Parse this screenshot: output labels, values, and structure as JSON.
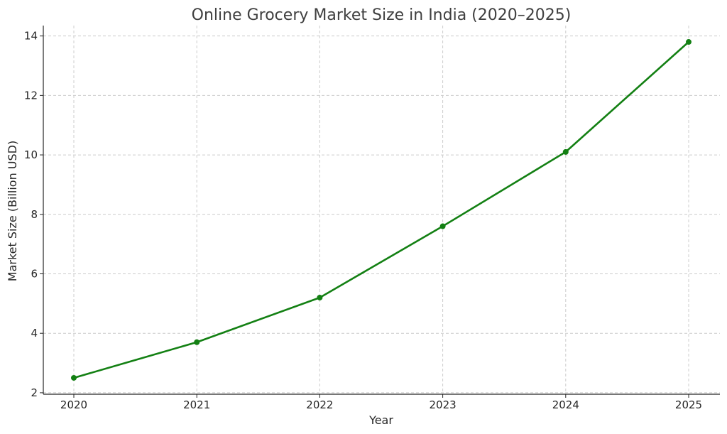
{
  "chart_data": {
    "type": "line",
    "title": "Online Grocery Market Size in India (2020–2025)",
    "xlabel": "Year",
    "ylabel": "Market Size (Billion USD)",
    "x": [
      "2020",
      "2021",
      "2022",
      "2023",
      "2024",
      "2025"
    ],
    "series": [
      {
        "values": [
          2.5,
          3.7,
          5.2,
          7.6,
          10.1,
          13.8
        ],
        "color": "#138013"
      }
    ],
    "yticks": [
      "2",
      "4",
      "6",
      "8",
      "10",
      "12",
      "14"
    ],
    "ylim": [
      1.95,
      14.35
    ],
    "grid": true,
    "marker": "circle"
  }
}
